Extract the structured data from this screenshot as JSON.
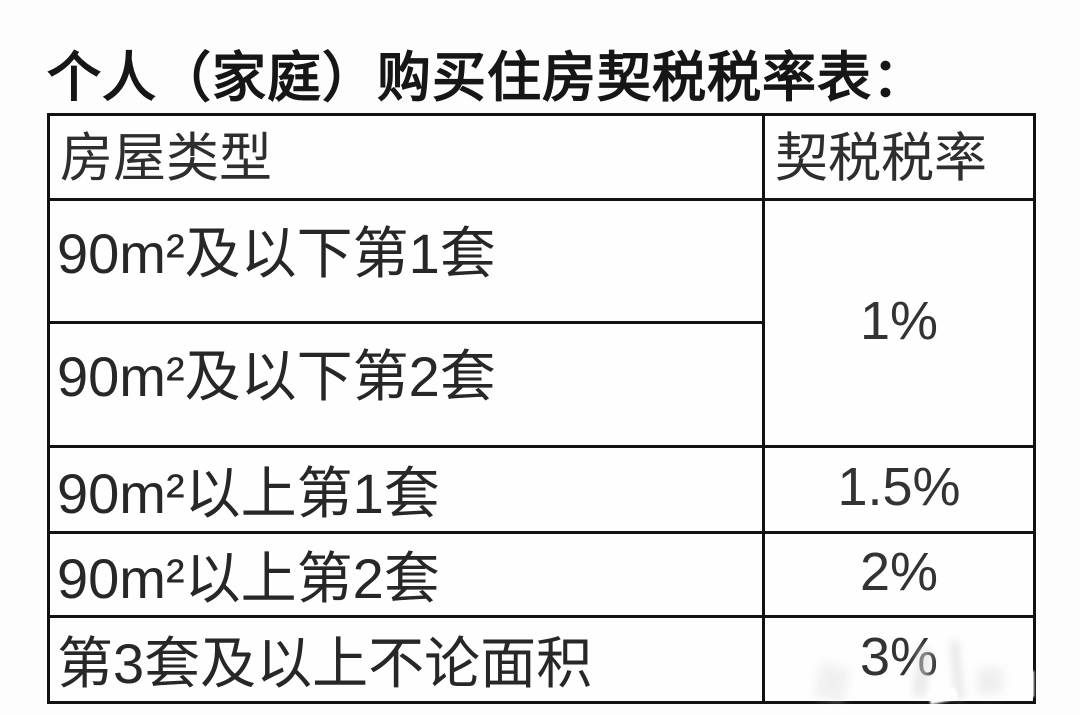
{
  "title": "个人（家庭）购买住房契税税率表：",
  "colors": {
    "text": "#2b2b2b",
    "border": "#121212",
    "background": "#fdfdfd"
  },
  "table": {
    "headers": [
      {
        "label": "房屋类型"
      },
      {
        "label": "契税税率"
      }
    ],
    "rows": [
      {
        "house_type": "90m²及以下第1套"
      },
      {
        "house_type": "90m²及以下第2套"
      },
      {
        "house_type": "90m²以上第1套",
        "tax_rate": "1.5%"
      },
      {
        "house_type": "90m²以上第2套",
        "tax_rate": "2%"
      },
      {
        "house_type": "第3套及以上不论面积",
        "tax_rate": "3%"
      }
    ],
    "merged_rate": {
      "tax_rate": "1%",
      "applies_to_rows": [
        0,
        1
      ]
    }
  }
}
